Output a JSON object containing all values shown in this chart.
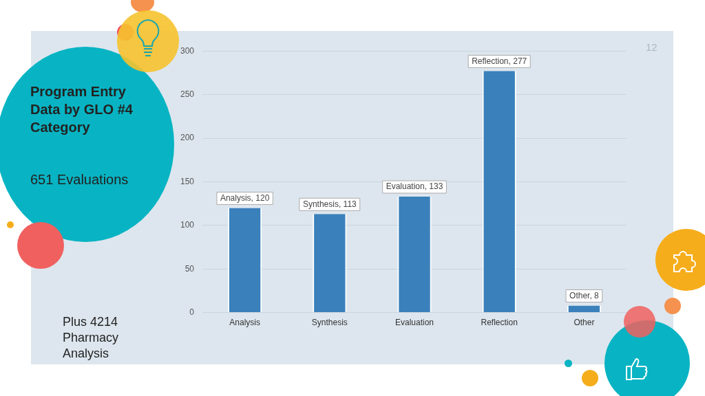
{
  "chart_data": {
    "type": "bar",
    "title": "Program Entry Data by GLO #4 Category",
    "subtitle": "651 Evaluations",
    "annotations": [
      "Plus 4214 Pharmacy Analysis",
      "12"
    ],
    "categories": [
      "Analysis",
      "Synthesis",
      "Evaluation",
      "Reflection",
      "Other"
    ],
    "values": [
      120,
      113,
      133,
      277,
      8
    ],
    "value_labels": [
      "Analysis, 120",
      "Synthesis, 113",
      "Evaluation, 133",
      "Reflection, 277",
      "Other, 8"
    ],
    "color": "#3a80bb",
    "ylim": [
      0,
      300
    ],
    "yticks": [
      0,
      50,
      100,
      150,
      200,
      250,
      300
    ],
    "grid": "y",
    "legend": false
  }
}
